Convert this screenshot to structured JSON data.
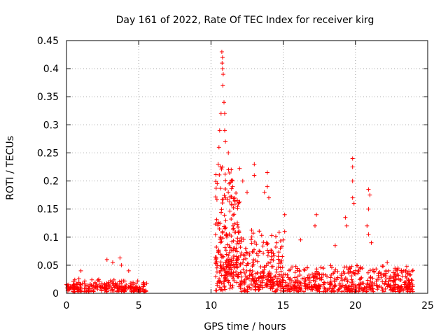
{
  "chart_data": {
    "type": "scatter",
    "title": "Day 161 of 2022, Rate Of TEC Index for receiver kirg",
    "xlabel": "GPS time / hours",
    "ylabel": "ROTI / TECUs",
    "xlim": [
      0,
      25
    ],
    "ylim": [
      0,
      0.45
    ],
    "grid": true,
    "x_ticks": [
      0,
      5,
      10,
      15,
      20,
      25
    ],
    "x_tick_labels": [
      "0",
      "5",
      "10",
      "15",
      "20",
      "25"
    ],
    "y_ticks": [
      0,
      0.05,
      0.1,
      0.15,
      0.2,
      0.25,
      0.3,
      0.35,
      0.4,
      0.45
    ],
    "y_tick_labels": [
      "0",
      "0.05",
      "0.1",
      "0.15",
      "0.2",
      "0.25",
      "0.3",
      "0.35",
      "0.4",
      "0.45"
    ],
    "marker": "+",
    "color": "#ff0000",
    "series": [
      {
        "name": "ROTI",
        "segments": [
          {
            "x_range": [
              0,
              5.6
            ],
            "base": 0.01,
            "spread": 0.015,
            "density": 240
          },
          {
            "x_range": [
              10.3,
              12.0
            ],
            "base": 0.05,
            "spread": 0.18,
            "density": 260
          },
          {
            "x_range": [
              12.0,
              15.0
            ],
            "base": 0.02,
            "spread": 0.09,
            "density": 260
          },
          {
            "x_range": [
              15.0,
              24.0
            ],
            "base": 0.01,
            "spread": 0.04,
            "density": 500
          }
        ],
        "highlights": [
          {
            "x": 2.8,
            "y": 0.06
          },
          {
            "x": 3.2,
            "y": 0.055
          },
          {
            "x": 3.7,
            "y": 0.063
          },
          {
            "x": 3.8,
            "y": 0.05
          },
          {
            "x": 4.3,
            "y": 0.04
          },
          {
            "x": 1.0,
            "y": 0.04
          },
          {
            "x": 10.75,
            "y": 0.43
          },
          {
            "x": 10.8,
            "y": 0.42
          },
          {
            "x": 10.77,
            "y": 0.41
          },
          {
            "x": 10.8,
            "y": 0.4
          },
          {
            "x": 10.85,
            "y": 0.39
          },
          {
            "x": 10.82,
            "y": 0.37
          },
          {
            "x": 10.9,
            "y": 0.34
          },
          {
            "x": 10.95,
            "y": 0.32
          },
          {
            "x": 10.7,
            "y": 0.32
          },
          {
            "x": 10.95,
            "y": 0.29
          },
          {
            "x": 11.0,
            "y": 0.27
          },
          {
            "x": 10.6,
            "y": 0.29
          },
          {
            "x": 10.55,
            "y": 0.26
          },
          {
            "x": 10.5,
            "y": 0.23
          },
          {
            "x": 11.2,
            "y": 0.25
          },
          {
            "x": 11.4,
            "y": 0.22
          },
          {
            "x": 11.5,
            "y": 0.19
          },
          {
            "x": 12.2,
            "y": 0.2
          },
          {
            "x": 12.5,
            "y": 0.18
          },
          {
            "x": 13.0,
            "y": 0.23
          },
          {
            "x": 13.0,
            "y": 0.21
          },
          {
            "x": 13.7,
            "y": 0.18
          },
          {
            "x": 13.9,
            "y": 0.215
          },
          {
            "x": 13.9,
            "y": 0.19
          },
          {
            "x": 14.0,
            "y": 0.17
          },
          {
            "x": 15.0,
            "y": 0.095
          },
          {
            "x": 15.1,
            "y": 0.14
          },
          {
            "x": 15.1,
            "y": 0.11
          },
          {
            "x": 16.2,
            "y": 0.095
          },
          {
            "x": 17.3,
            "y": 0.14
          },
          {
            "x": 17.2,
            "y": 0.12
          },
          {
            "x": 18.6,
            "y": 0.085
          },
          {
            "x": 19.3,
            "y": 0.135
          },
          {
            "x": 19.4,
            "y": 0.12
          },
          {
            "x": 19.8,
            "y": 0.24
          },
          {
            "x": 19.8,
            "y": 0.225
          },
          {
            "x": 19.8,
            "y": 0.2
          },
          {
            "x": 19.9,
            "y": 0.16
          },
          {
            "x": 19.8,
            "y": 0.17
          },
          {
            "x": 20.9,
            "y": 0.185
          },
          {
            "x": 21.0,
            "y": 0.175
          },
          {
            "x": 20.9,
            "y": 0.15
          },
          {
            "x": 20.8,
            "y": 0.12
          },
          {
            "x": 20.9,
            "y": 0.105
          },
          {
            "x": 21.1,
            "y": 0.09
          },
          {
            "x": 22.2,
            "y": 0.055
          },
          {
            "x": 23.5,
            "y": 0.04
          }
        ]
      }
    ]
  }
}
